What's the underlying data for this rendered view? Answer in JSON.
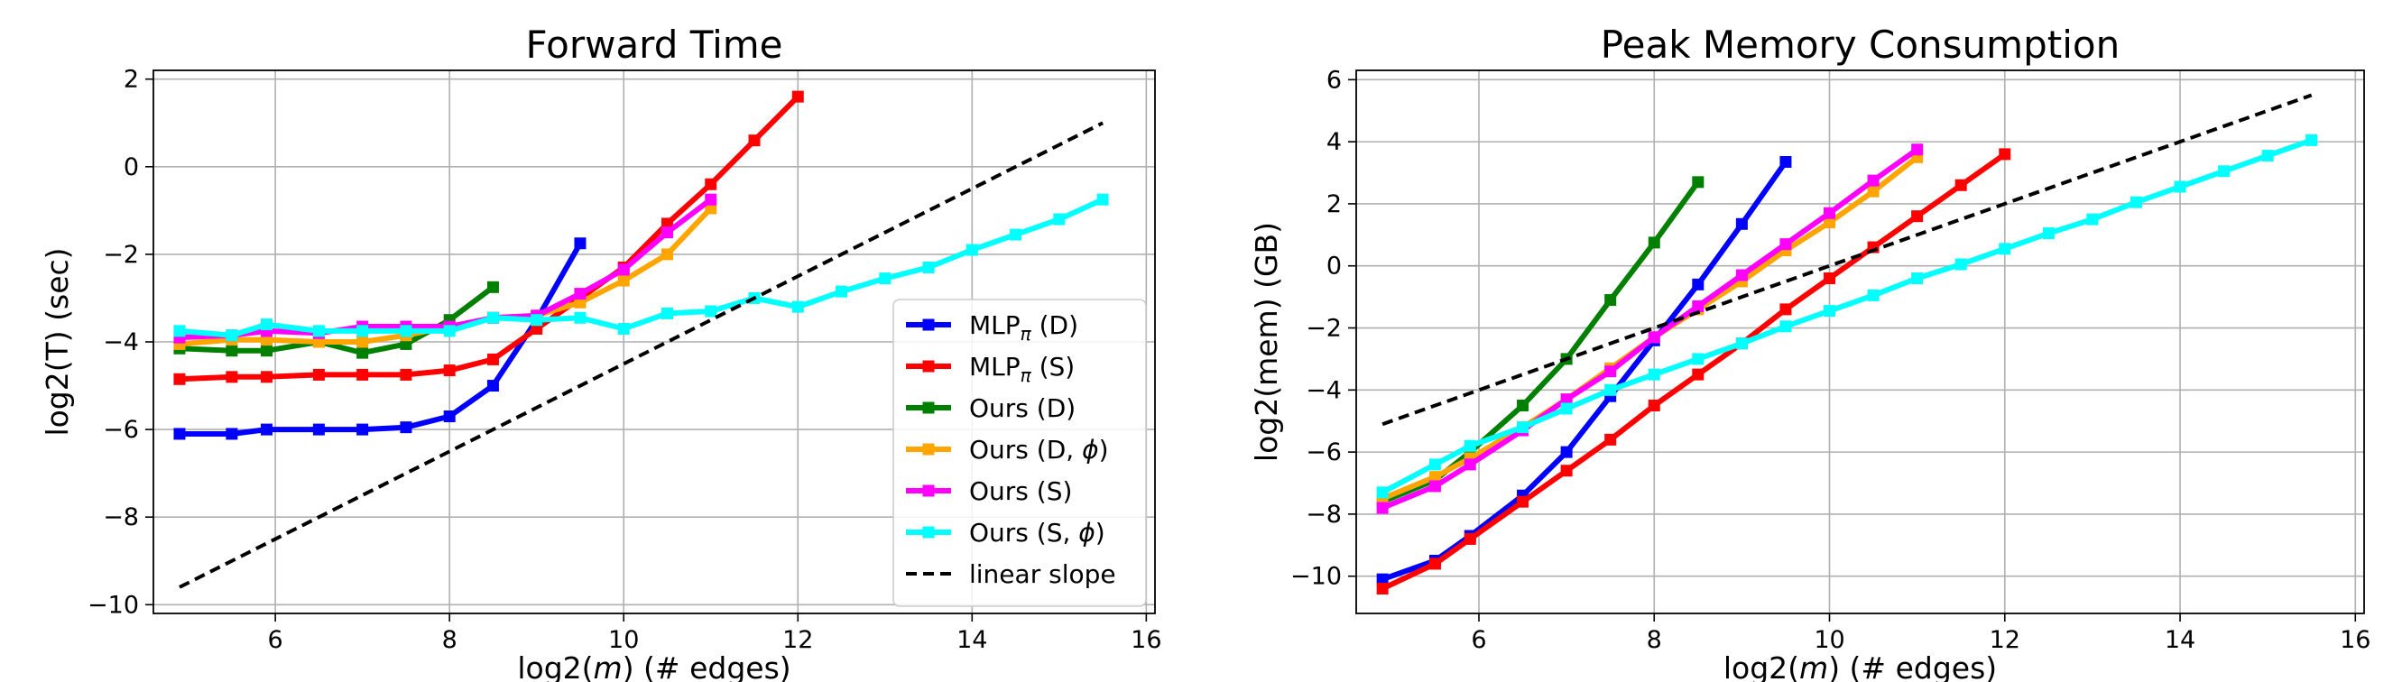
{
  "chart_data": [
    {
      "type": "line",
      "title": "Forward Time",
      "xlabel": "log2(m) (# edges)",
      "ylabel": "log2(T) (sec)",
      "xlim": [
        4.6,
        16.1
      ],
      "ylim": [
        -10.2,
        2.2
      ],
      "xticks": [
        6,
        8,
        10,
        12,
        14,
        16
      ],
      "yticks": [
        -10,
        -8,
        -6,
        -4,
        -2,
        0,
        2
      ],
      "grid": true,
      "legend": "lower-right",
      "series": [
        {
          "name": "MLP_π (D)",
          "color": "#0000ff",
          "x": [
            4.9,
            5.5,
            5.9,
            6.5,
            7.0,
            7.5,
            8.0,
            8.5,
            9.0,
            9.5
          ],
          "y": [
            -6.1,
            -6.1,
            -6.0,
            -6.0,
            -6.0,
            -5.95,
            -5.7,
            -5.0,
            -3.5,
            -1.75
          ]
        },
        {
          "name": "MLP_π (S)",
          "color": "#ff0000",
          "x": [
            4.9,
            5.5,
            5.9,
            6.5,
            7.0,
            7.5,
            8.0,
            8.5,
            9.0,
            9.5,
            10.0,
            10.5,
            11.0,
            11.5,
            12.0
          ],
          "y": [
            -4.85,
            -4.8,
            -4.8,
            -4.75,
            -4.75,
            -4.75,
            -4.65,
            -4.4,
            -3.7,
            -3.0,
            -2.3,
            -1.3,
            -0.4,
            0.6,
            1.6
          ]
        },
        {
          "name": "Ours (D)",
          "color": "#008000",
          "x": [
            4.9,
            5.5,
            5.9,
            6.5,
            7.0,
            7.5,
            8.0,
            8.5
          ],
          "y": [
            -4.15,
            -4.2,
            -4.2,
            -4.0,
            -4.25,
            -4.05,
            -3.5,
            -2.75
          ]
        },
        {
          "name": "Ours (D, ϕ)",
          "color": "#ffa500",
          "x": [
            4.9,
            5.5,
            5.9,
            6.5,
            7.0,
            7.5,
            8.0,
            8.5,
            9.0,
            9.5,
            10.0,
            10.5,
            11.0
          ],
          "y": [
            -4.05,
            -3.95,
            -3.95,
            -4.0,
            -4.0,
            -3.85,
            -3.65,
            -3.45,
            -3.4,
            -3.1,
            -2.6,
            -2.0,
            -0.95
          ]
        },
        {
          "name": "Ours (S)",
          "color": "#ff00ff",
          "x": [
            4.9,
            5.5,
            5.9,
            6.5,
            7.0,
            7.5,
            8.0,
            8.5,
            9.0,
            9.5,
            10.0,
            10.5,
            11.0
          ],
          "y": [
            -3.9,
            -3.85,
            -3.75,
            -3.8,
            -3.65,
            -3.65,
            -3.65,
            -3.45,
            -3.4,
            -2.9,
            -2.35,
            -1.5,
            -0.75
          ]
        },
        {
          "name": "Ours (S, ϕ)",
          "color": "#00ffff",
          "x": [
            4.9,
            5.5,
            5.9,
            6.5,
            7.0,
            7.5,
            8.0,
            8.5,
            9.0,
            9.5,
            10.0,
            10.5,
            11.0,
            11.5,
            12.0,
            12.5,
            13.0,
            13.5,
            14.0,
            14.5,
            15.0,
            15.5
          ],
          "y": [
            -3.75,
            -3.85,
            -3.6,
            -3.75,
            -3.75,
            -3.75,
            -3.75,
            -3.45,
            -3.5,
            -3.45,
            -3.7,
            -3.35,
            -3.3,
            -3.0,
            -3.2,
            -2.85,
            -2.55,
            -2.3,
            -1.9,
            -1.55,
            -1.2,
            -0.75
          ]
        },
        {
          "name": "linear slope",
          "color": "#000000",
          "dashed": true,
          "markers": false,
          "x": [
            4.9,
            15.5
          ],
          "y": [
            -9.6,
            1.0
          ]
        }
      ]
    },
    {
      "type": "line",
      "title": "Peak Memory Consumption",
      "xlabel": "log2(m) (# edges)",
      "ylabel": "log2(mem) (GB)",
      "xlim": [
        4.6,
        16.1
      ],
      "ylim": [
        -11.2,
        6.3
      ],
      "xticks": [
        6,
        8,
        10,
        12,
        14,
        16
      ],
      "yticks": [
        -10,
        -8,
        -6,
        -4,
        -2,
        0,
        2,
        4,
        6
      ],
      "grid": true,
      "legend": "none",
      "series": [
        {
          "name": "MLP_π (D)",
          "color": "#0000ff",
          "x": [
            4.9,
            5.5,
            5.9,
            6.5,
            7.0,
            7.5,
            8.0,
            8.5,
            9.0,
            9.5
          ],
          "y": [
            -10.1,
            -9.5,
            -8.7,
            -7.4,
            -6.0,
            -4.2,
            -2.4,
            -0.6,
            1.35,
            3.35
          ]
        },
        {
          "name": "MLP_π (S)",
          "color": "#ff0000",
          "x": [
            4.9,
            5.5,
            5.9,
            6.5,
            7.0,
            7.5,
            8.0,
            8.5,
            9.0,
            9.5,
            10.0,
            10.5,
            11.0,
            11.5,
            12.0
          ],
          "y": [
            -10.4,
            -9.6,
            -8.8,
            -7.6,
            -6.6,
            -5.6,
            -4.5,
            -3.5,
            -2.5,
            -1.4,
            -0.4,
            0.6,
            1.6,
            2.6,
            3.6
          ]
        },
        {
          "name": "Ours (D)",
          "color": "#008000",
          "x": [
            4.9,
            5.5,
            5.9,
            6.5,
            7.0,
            7.5,
            8.0,
            8.5
          ],
          "y": [
            -7.6,
            -6.9,
            -6.0,
            -4.5,
            -3.0,
            -1.1,
            0.75,
            2.7
          ]
        },
        {
          "name": "Ours (D, ϕ)",
          "color": "#ffa500",
          "x": [
            4.9,
            5.5,
            5.9,
            6.5,
            7.0,
            7.5,
            8.0,
            8.5,
            9.0,
            9.5,
            10.0,
            10.5,
            11.0
          ],
          "y": [
            -7.5,
            -6.8,
            -6.2,
            -5.2,
            -4.3,
            -3.3,
            -2.3,
            -1.4,
            -0.5,
            0.5,
            1.4,
            2.4,
            3.5
          ]
        },
        {
          "name": "Ours (S)",
          "color": "#ff00ff",
          "x": [
            4.9,
            5.5,
            5.9,
            6.5,
            7.0,
            7.5,
            8.0,
            8.5,
            9.0,
            9.5,
            10.0,
            10.5,
            11.0
          ],
          "y": [
            -7.8,
            -7.1,
            -6.4,
            -5.3,
            -4.3,
            -3.4,
            -2.3,
            -1.3,
            -0.3,
            0.7,
            1.7,
            2.75,
            3.75
          ]
        },
        {
          "name": "Ours (S, ϕ)",
          "color": "#00ffff",
          "x": [
            4.9,
            5.5,
            5.9,
            6.5,
            7.0,
            7.5,
            8.0,
            8.5,
            9.0,
            9.5,
            10.0,
            10.5,
            11.0,
            11.5,
            12.0,
            12.5,
            13.0,
            13.5,
            14.0,
            14.5,
            15.0,
            15.5
          ],
          "y": [
            -7.3,
            -6.4,
            -5.8,
            -5.2,
            -4.6,
            -4.0,
            -3.5,
            -3.0,
            -2.5,
            -1.95,
            -1.45,
            -0.95,
            -0.4,
            0.05,
            0.55,
            1.05,
            1.5,
            2.05,
            2.55,
            3.05,
            3.55,
            4.05
          ]
        },
        {
          "name": "linear slope",
          "color": "#000000",
          "dashed": true,
          "markers": false,
          "x": [
            4.9,
            15.5
          ],
          "y": [
            -5.1,
            5.5
          ]
        }
      ]
    }
  ],
  "legend": {
    "entries": [
      {
        "base": "MLP",
        "sub": "π",
        "rest": " (D)",
        "color": "#0000ff",
        "dashed": false
      },
      {
        "base": "MLP",
        "sub": "π",
        "rest": " (S)",
        "color": "#ff0000",
        "dashed": false
      },
      {
        "base": "Ours (D)",
        "sub": "",
        "rest": "",
        "color": "#008000",
        "dashed": false
      },
      {
        "base": "Ours (D, ",
        "sub": "",
        "rest": "ϕ)",
        "color": "#ffa500",
        "dashed": false
      },
      {
        "base": "Ours (S)",
        "sub": "",
        "rest": "",
        "color": "#ff00ff",
        "dashed": false
      },
      {
        "base": "Ours (S, ",
        "sub": "",
        "rest": "ϕ)",
        "color": "#00ffff",
        "dashed": false
      },
      {
        "base": "linear slope",
        "sub": "",
        "rest": "",
        "color": "#000000",
        "dashed": true
      }
    ]
  }
}
